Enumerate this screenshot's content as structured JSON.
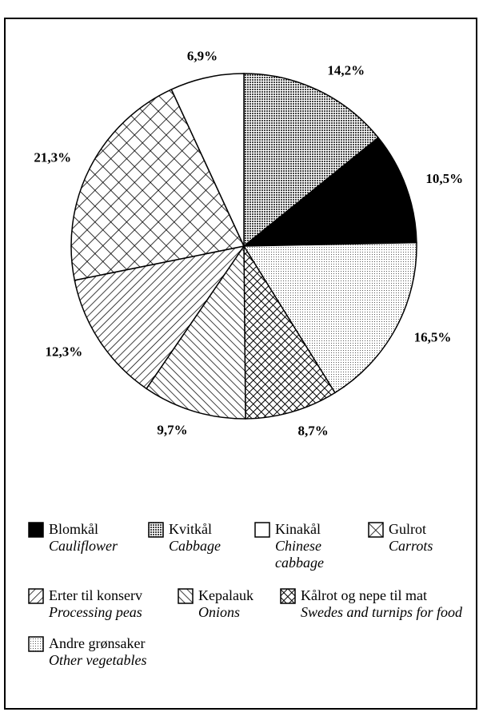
{
  "chart_data": {
    "type": "pie",
    "categories": [
      "Kvitkål",
      "Blomkål",
      "Andre grønsaker",
      "Kålrot og nepe til mat",
      "Kepalauk",
      "Erter til konserv",
      "Gulrot",
      "Kinakål"
    ],
    "categories_en": [
      "Cabbage",
      "Cauliflower",
      "Other vegetables",
      "Swedes and turnips for food",
      "Onions",
      "Processing peas",
      "Carrots",
      "Chinese cabbage"
    ],
    "values": [
      14.2,
      10.5,
      16.5,
      8.7,
      9.7,
      12.3,
      21.3,
      6.9
    ],
    "value_labels": [
      "14,2%",
      "10,5%",
      "16,5%",
      "8,7%",
      "9,7%",
      "12,3%",
      "21,3%",
      "6,9%"
    ],
    "patterns": [
      "dense-dots",
      "solid",
      "light-dots",
      "crosshatch",
      "backslash",
      "slash",
      "diamond",
      "none"
    ]
  }
}
